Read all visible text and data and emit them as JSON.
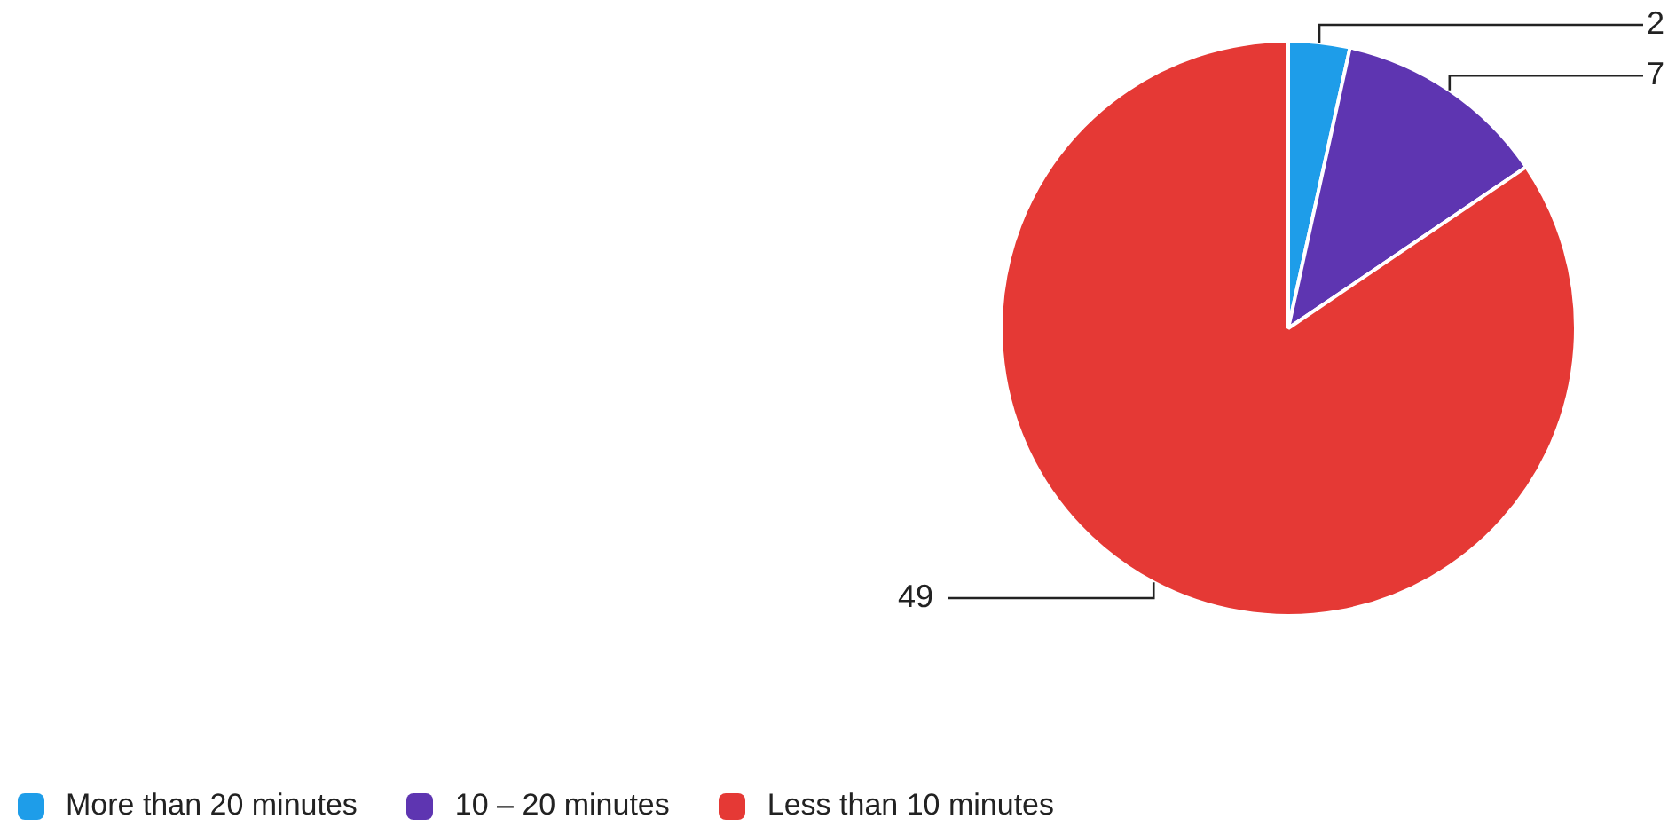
{
  "chart_data": {
    "type": "pie",
    "categories": [
      "More than 20 minutes",
      "10 – 20 minutes",
      "Less than 10 minutes"
    ],
    "values": [
      2,
      7,
      49
    ],
    "colors": [
      "#1e9de9",
      "#5e35b1",
      "#e53935"
    ],
    "data_labels": true,
    "legend": "bottom left"
  }
}
